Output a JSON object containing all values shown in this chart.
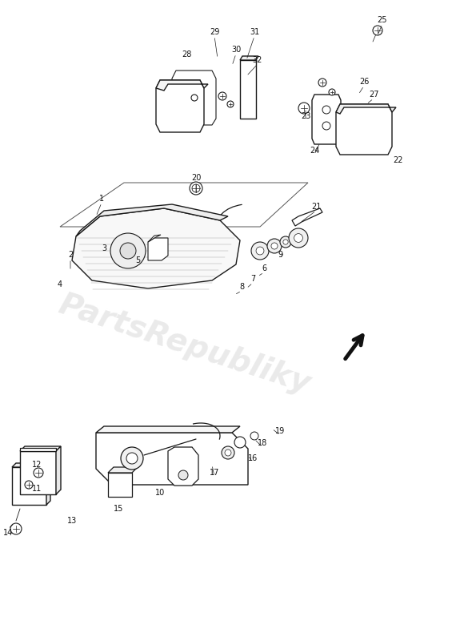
{
  "background_color": "#ffffff",
  "line_color": "#1a1a1a",
  "watermark_text": "PartsRepubliky",
  "watermark_color": "#c8c8c8",
  "watermark_alpha": 0.38,
  "arrow_color": "#111111",
  "label_fontsize": 7.0,
  "label_color": "#111111",
  "fig_width": 5.65,
  "fig_height": 8.0,
  "dpi": 100
}
